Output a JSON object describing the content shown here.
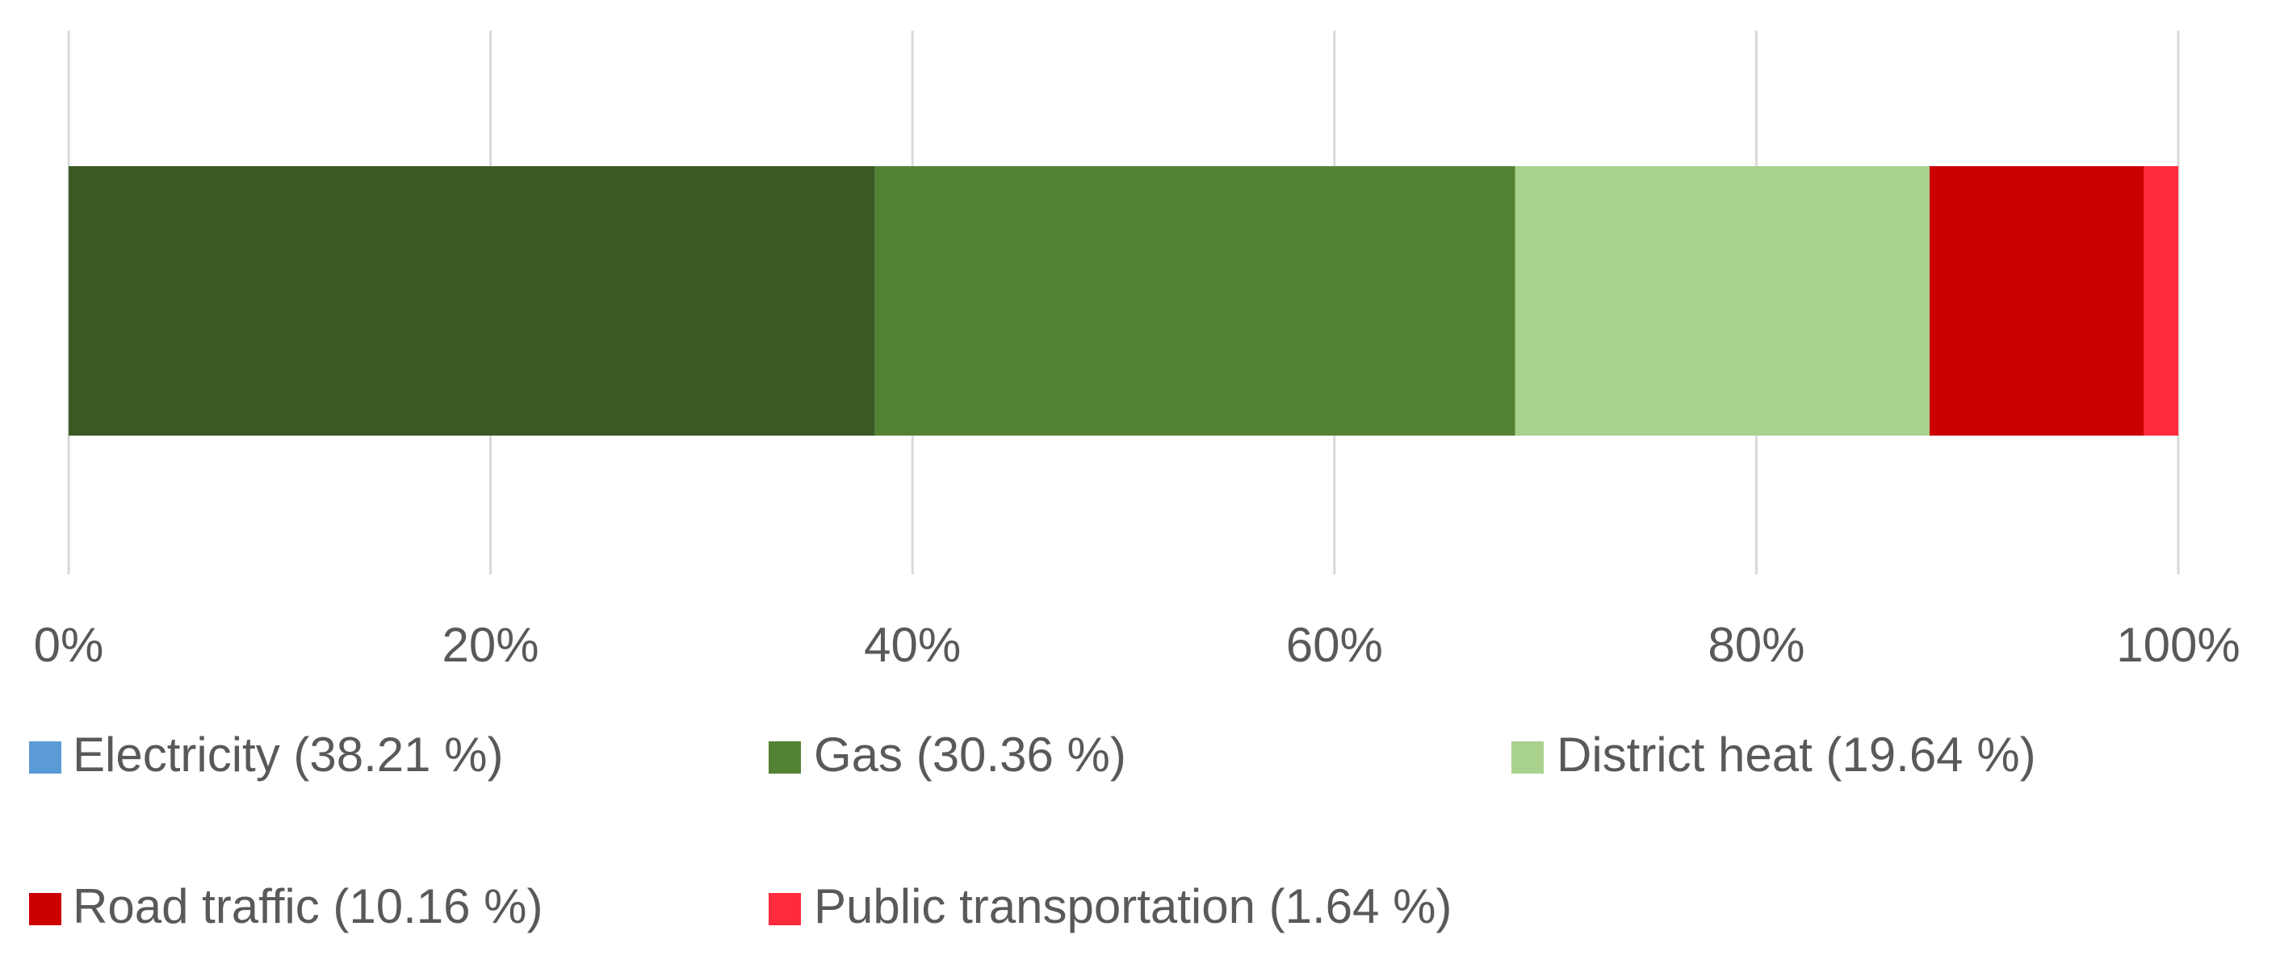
{
  "chart_data": {
    "type": "bar",
    "orientation": "horizontal",
    "stacked": true,
    "normalized": true,
    "title": "",
    "xlabel": "",
    "ylabel": "",
    "xlim": [
      0,
      100
    ],
    "x_ticks": [
      "0%",
      "20%",
      "40%",
      "60%",
      "80%",
      "100%"
    ],
    "x_tick_values": [
      0,
      20,
      40,
      60,
      80,
      100
    ],
    "grid": true,
    "legend_position": "bottom",
    "series": [
      {
        "name": "Electricity (38.21 %)",
        "value": 38.21,
        "bar_color": "#3a5a24",
        "legend_color": "#5b9bd5"
      },
      {
        "name": "Gas (30.36 %)",
        "value": 30.36,
        "bar_color": "#548235",
        "legend_color": "#548235"
      },
      {
        "name": "District heat (19.64 %)",
        "value": 19.64,
        "bar_color": "#a9d18e",
        "legend_color": "#a9d18e"
      },
      {
        "name": "Road traffic (10.16 %)",
        "value": 10.16,
        "bar_color": "#cc0000",
        "legend_color": "#cc0000"
      },
      {
        "name": "Public transportation (1.64 %)",
        "value": 1.64,
        "bar_color": "#ff2a3c",
        "legend_color": "#ff2a3c"
      }
    ],
    "gridline_color": "#d9d9d9",
    "text_color": "#595959"
  }
}
